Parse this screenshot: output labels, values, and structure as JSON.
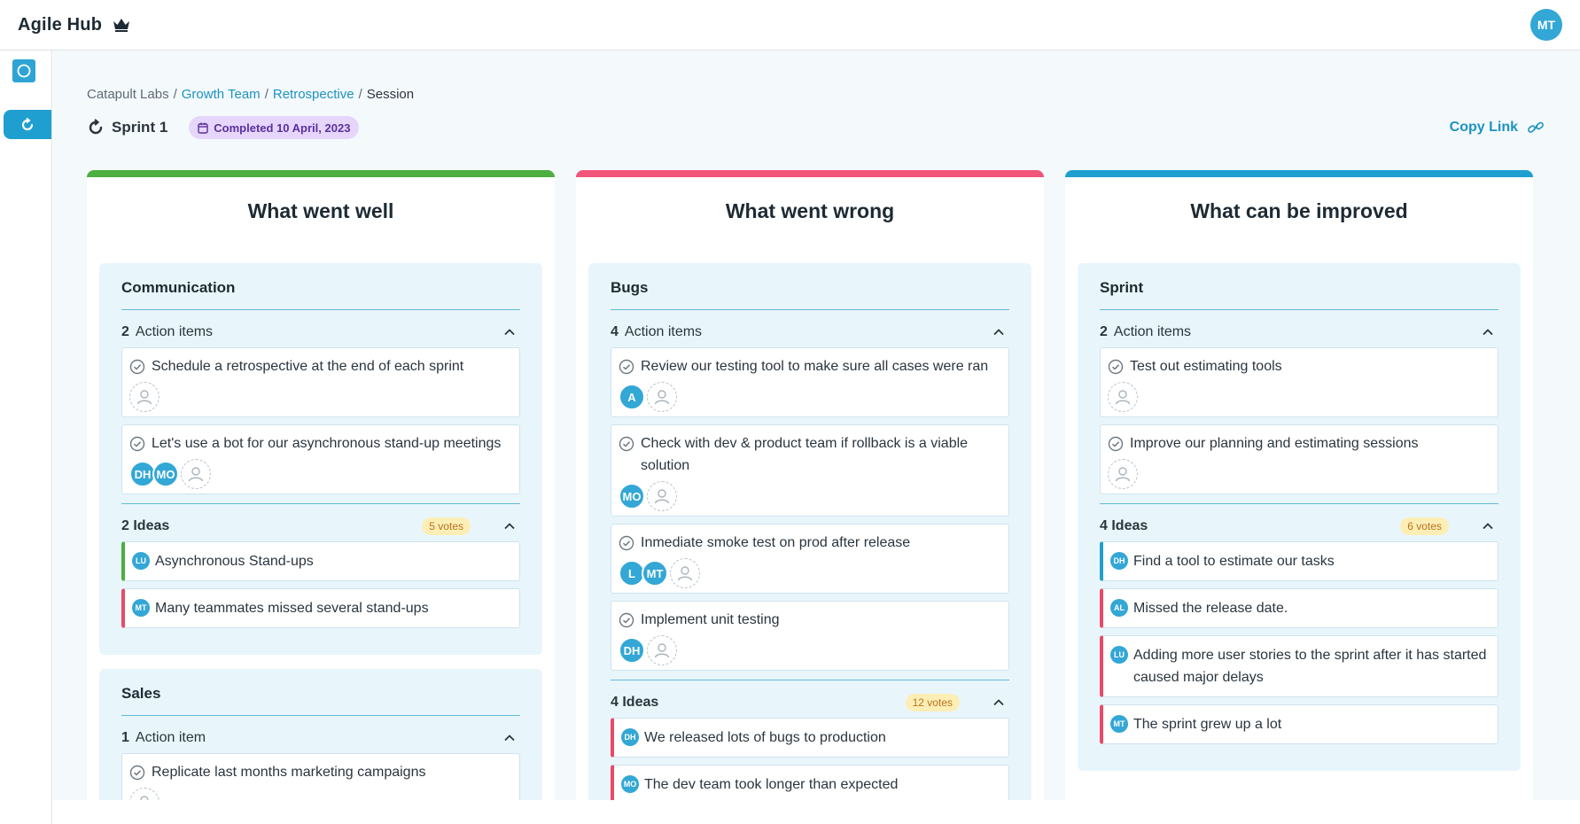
{
  "app": {
    "title": "Agile Hub",
    "user_initials": "MT"
  },
  "breadcrumb": {
    "org": "Catapult Labs",
    "team": "Growth Team",
    "board": "Retrospective",
    "current": "Session",
    "separator": "/"
  },
  "sprint": {
    "name": "Sprint 1",
    "status": "Completed 10 April, 2023"
  },
  "copy_link": "Copy Link",
  "colors": {
    "well": "#4caf3f",
    "wrong": "#f2557a",
    "improve": "#1f9fd0",
    "accent": "#1c93c2",
    "avatar": "#33a7d6"
  },
  "columns": [
    {
      "title": "What went well",
      "groups": [
        {
          "title": "Communication",
          "actions_count": "2",
          "actions_label": "Action items",
          "actions": [
            {
              "text": "Schedule a retrospective at the end of each sprint",
              "assignees": []
            },
            {
              "text": "Let's use a bot for our asynchronous stand-up meetings",
              "assignees": [
                "DH",
                "MO"
              ]
            }
          ],
          "ideas_label": "2 Ideas",
          "votes": "5 votes",
          "ideas": [
            {
              "initials": "LU",
              "text": "Asynchronous Stand-ups"
            },
            {
              "initials": "MT",
              "text": "Many teammates missed several stand-ups"
            }
          ]
        },
        {
          "title": "Sales",
          "actions_count": "1",
          "actions_label": "Action item",
          "actions": [
            {
              "text": "Replicate last months marketing campaigns",
              "assignees": []
            }
          ]
        }
      ]
    },
    {
      "title": "What went wrong",
      "groups": [
        {
          "title": "Bugs",
          "actions_count": "4",
          "actions_label": "Action items",
          "actions": [
            {
              "text": "Review our testing tool to make sure all cases were ran",
              "assignees": [
                "A"
              ]
            },
            {
              "text": "Check with dev & product team if rollback is a viable solution",
              "assignees": [
                "MO"
              ]
            },
            {
              "text": "Inmediate smoke test on prod after release",
              "assignees": [
                "L",
                "MT"
              ]
            },
            {
              "text": "Implement unit testing",
              "assignees": [
                "DH"
              ]
            }
          ],
          "ideas_label": "4 Ideas",
          "votes": "12 votes",
          "ideas": [
            {
              "initials": "DH",
              "text": "We released lots of bugs to production"
            },
            {
              "initials": "MO",
              "text": "The dev team took longer than expected"
            }
          ]
        }
      ]
    },
    {
      "title": "What can be improved",
      "groups": [
        {
          "title": "Sprint",
          "actions_count": "2",
          "actions_label": "Action items",
          "actions": [
            {
              "text": "Test out estimating tools",
              "assignees": []
            },
            {
              "text": "Improve our planning and estimating sessions",
              "assignees": []
            }
          ],
          "ideas_label": "4 Ideas",
          "votes": "6 votes",
          "ideas": [
            {
              "initials": "DH",
              "text": "Find a tool to estimate our tasks"
            },
            {
              "initials": "AL",
              "text": "Missed the release date."
            },
            {
              "initials": "LU",
              "text": "Adding more user stories to the sprint after it has started caused major delays"
            },
            {
              "initials": "MT",
              "text": "The sprint grew up a lot"
            }
          ]
        }
      ]
    }
  ]
}
